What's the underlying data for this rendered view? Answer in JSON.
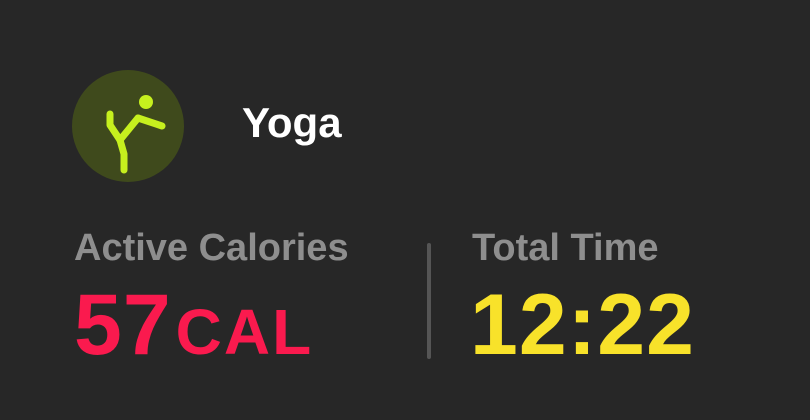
{
  "workout": {
    "title": "Yoga",
    "icon": "yoga-pose-icon",
    "icon_color": "#c6f01e",
    "icon_background": "#3f4a1c"
  },
  "metrics": {
    "active_calories": {
      "label": "Active Calories",
      "value": "57",
      "unit": "CAL",
      "color": "#fa1a4e"
    },
    "total_time": {
      "label": "Total Time",
      "value": "12:22",
      "color": "#f8e22a"
    }
  }
}
